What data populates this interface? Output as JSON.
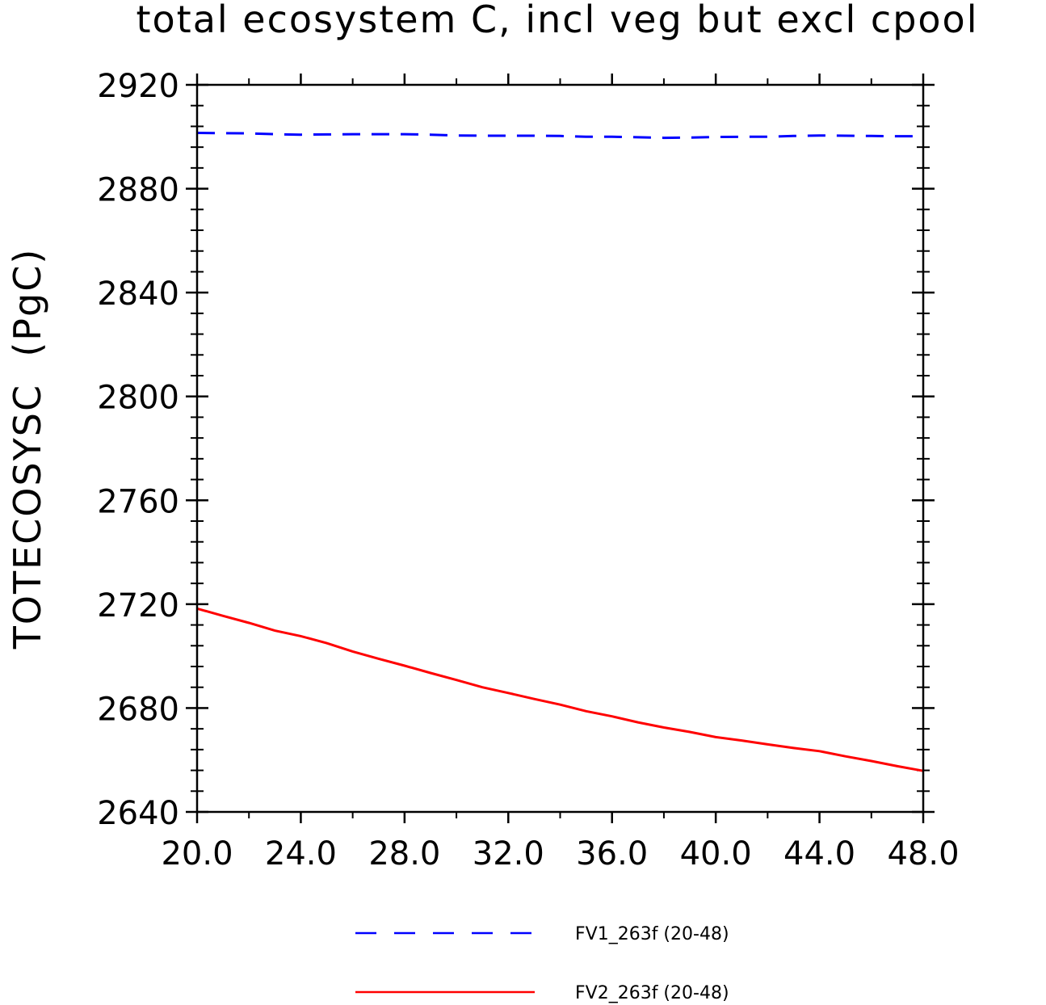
{
  "chart_data": {
    "type": "line",
    "title": "total ecosystem C, incl veg but excl cpool",
    "xlabel": "",
    "ylabel": "TOTECOSYSC  (PgC)",
    "xlim": [
      20,
      48
    ],
    "ylim": [
      2640,
      2920
    ],
    "x_ticks": [
      "20.0",
      "24.0",
      "28.0",
      "32.0",
      "36.0",
      "40.0",
      "44.0",
      "48.0"
    ],
    "x_tick_values": [
      20,
      24,
      28,
      32,
      36,
      40,
      44,
      48
    ],
    "y_ticks": [
      "2640",
      "2680",
      "2720",
      "2760",
      "2800",
      "2840",
      "2880",
      "2920"
    ],
    "y_tick_values": [
      2640,
      2680,
      2720,
      2760,
      2800,
      2840,
      2880,
      2920
    ],
    "grid": false,
    "legend_position": "bottom",
    "x": [
      20,
      21,
      22,
      23,
      24,
      25,
      26,
      27,
      28,
      29,
      30,
      31,
      32,
      33,
      34,
      35,
      36,
      37,
      38,
      39,
      40,
      41,
      42,
      43,
      44,
      45,
      46,
      47,
      48
    ],
    "series": [
      {
        "name": "FV1_263f (20-48)",
        "color": "#0000ff",
        "dash": "dashed",
        "values": [
          2901.5,
          2901.4,
          2901.3,
          2901.0,
          2900.8,
          2900.9,
          2901.0,
          2901.0,
          2901.0,
          2900.8,
          2900.5,
          2900.4,
          2900.4,
          2900.4,
          2900.3,
          2900.0,
          2900.0,
          2899.8,
          2899.6,
          2899.7,
          2899.9,
          2900.0,
          2900.0,
          2900.3,
          2900.5,
          2900.4,
          2900.3,
          2900.2,
          2900.2
        ]
      },
      {
        "name": "FV2_263f (20-48)",
        "color": "#ff0000",
        "dash": "solid",
        "values": [
          2718.3,
          2715.5,
          2712.8,
          2709.8,
          2707.7,
          2705.0,
          2701.8,
          2699.0,
          2696.3,
          2693.5,
          2690.8,
          2688.0,
          2685.8,
          2683.5,
          2681.3,
          2678.8,
          2676.8,
          2674.5,
          2672.5,
          2670.8,
          2668.8,
          2667.5,
          2666.0,
          2664.6,
          2663.4,
          2661.4,
          2659.6,
          2657.6,
          2655.8
        ]
      }
    ]
  }
}
